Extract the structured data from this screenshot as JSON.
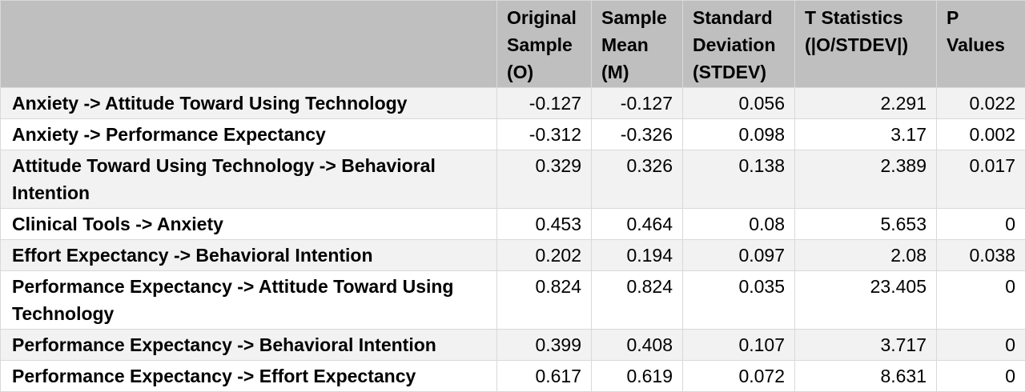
{
  "headers": [
    "",
    "Original Sample (O)",
    "Sample Mean (M)",
    "Standard Deviation (STDEV)",
    "T Statistics (|O/STDEV|)",
    "P Values"
  ],
  "rows": [
    [
      "Anxiety -> Attitude Toward Using Technology",
      "-0.127",
      "-0.127",
      "0.056",
      "2.291",
      "0.022"
    ],
    [
      "Anxiety -> Performance Expectancy",
      "-0.312",
      "-0.326",
      "0.098",
      "3.17",
      "0.002"
    ],
    [
      "Attitude Toward Using Technology -> Behavioral Intention",
      "0.329",
      "0.326",
      "0.138",
      "2.389",
      "0.017"
    ],
    [
      "Clinical Tools -> Anxiety",
      "0.453",
      "0.464",
      "0.08",
      "5.653",
      "0"
    ],
    [
      "Effort Expectancy -> Behavioral Intention",
      "0.202",
      "0.194",
      "0.097",
      "2.08",
      "0.038"
    ],
    [
      "Performance Expectancy -> Attitude Toward Using Technology",
      "0.824",
      "0.824",
      "0.035",
      "23.405",
      "0"
    ],
    [
      "Performance Expectancy -> Behavioral Intention",
      "0.399",
      "0.408",
      "0.107",
      "3.717",
      "0"
    ],
    [
      "Performance Expectancy -> Effort Expectancy",
      "0.617",
      "0.619",
      "0.072",
      "8.631",
      "0"
    ]
  ],
  "colors": {
    "header_bg": "#bfbfbf",
    "row_odd_bg": "#f2f2f2",
    "row_even_bg": "#ffffff",
    "grid": "#d9d9d9"
  }
}
